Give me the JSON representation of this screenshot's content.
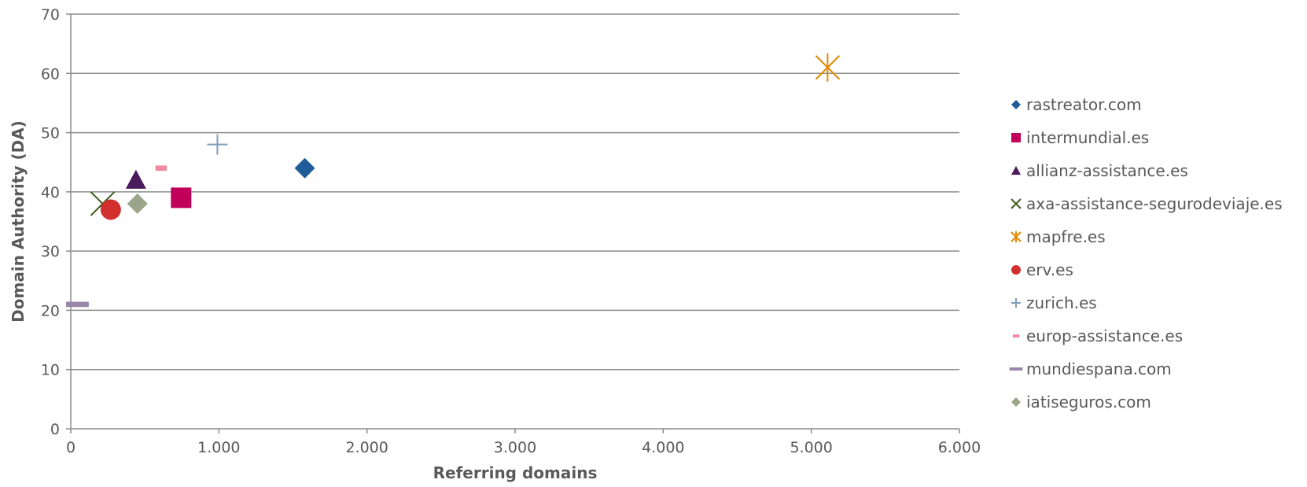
{
  "chart_data": {
    "type": "scatter",
    "xlabel": "Referring domains",
    "ylabel": "Domain Authority (DA)",
    "xlim": [
      0,
      6000
    ],
    "ylim": [
      0,
      70
    ],
    "x_ticks": [
      0,
      1000,
      2000,
      3000,
      4000,
      5000,
      6000
    ],
    "x_tick_labels": [
      "0",
      "1.000",
      "2.000",
      "3.000",
      "4.000",
      "5.000",
      "6.000"
    ],
    "y_ticks": [
      0,
      10,
      20,
      30,
      40,
      50,
      60,
      70
    ],
    "y_tick_labels": [
      "0",
      "10",
      "20",
      "30",
      "40",
      "50",
      "60",
      "70"
    ],
    "grid": "horizontal",
    "legend_position": "right",
    "series": [
      {
        "name": "rastreator.com",
        "x": 1580,
        "y": 44,
        "marker": "diamond",
        "color": "#1F5C99"
      },
      {
        "name": "intermundial.es",
        "x": 745,
        "y": 39,
        "marker": "square",
        "color": "#C0005A"
      },
      {
        "name": "allianz-assistance.es",
        "x": 440,
        "y": 42,
        "marker": "triangle",
        "color": "#4B1A5A"
      },
      {
        "name": "axa-assistance-segurodeviaje.es",
        "x": 215,
        "y": 38,
        "marker": "x",
        "color": "#3D5A1E"
      },
      {
        "name": "mapfre.es",
        "x": 5110,
        "y": 61,
        "marker": "star",
        "color": "#E08A00"
      },
      {
        "name": "erv.es",
        "x": 270,
        "y": 37,
        "marker": "circle",
        "color": "#D32F2F"
      },
      {
        "name": "zurich.es",
        "x": 990,
        "y": 48,
        "marker": "plus",
        "color": "#7D9CC0"
      },
      {
        "name": "europ-assistance.es",
        "x": 610,
        "y": 44,
        "marker": "dash",
        "color": "#F08AA0"
      },
      {
        "name": "mundiespana.com",
        "x": 45,
        "y": 21,
        "marker": "longdash",
        "color": "#9A85A8"
      },
      {
        "name": "iatiseguros.com",
        "x": 450,
        "y": 38,
        "marker": "diamond",
        "color": "#9AA58A"
      }
    ]
  }
}
